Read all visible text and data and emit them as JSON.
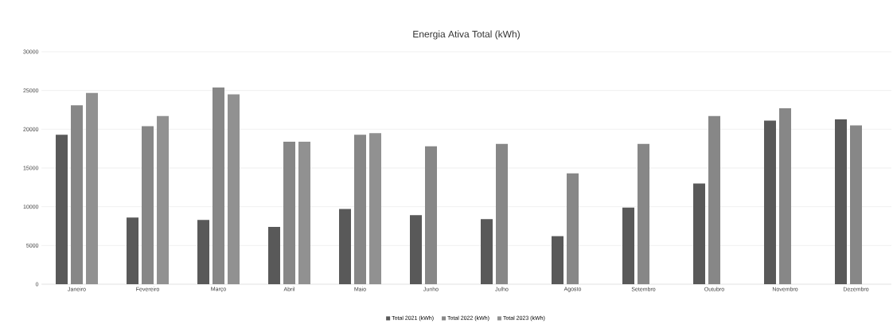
{
  "chart_data": {
    "type": "bar",
    "title": "Energia Ativa Total (kWh)",
    "categories": [
      "Janeiro",
      "Fevereiro",
      "Março",
      "Abril",
      "Maio",
      "Junho",
      "Julho",
      "Agosto",
      "Setembro",
      "Outubro",
      "Novembro",
      "Dezembro"
    ],
    "series": [
      {
        "name": "Total 2021 (kWh)",
        "color": "#595959",
        "values": [
          19300,
          8600,
          8300,
          7400,
          9700,
          8900,
          8400,
          6200,
          9900,
          13000,
          21100,
          21300
        ]
      },
      {
        "name": "Total 2022 (kWh)",
        "color": "#878787",
        "values": [
          23100,
          20400,
          25400,
          18400,
          19300,
          17800,
          18100,
          14300,
          18100,
          21700,
          22700,
          20500
        ]
      },
      {
        "name": "Total 2023 (kWh)",
        "color": "#919191",
        "values": [
          24700,
          21700,
          24500,
          18400,
          19500,
          null,
          null,
          null,
          null,
          null,
          null,
          null
        ]
      }
    ],
    "ylim": [
      0,
      30000
    ],
    "yticks": [
      0,
      5000,
      10000,
      15000,
      20000,
      25000,
      30000
    ],
    "grid": "y",
    "legend": "bottom"
  }
}
